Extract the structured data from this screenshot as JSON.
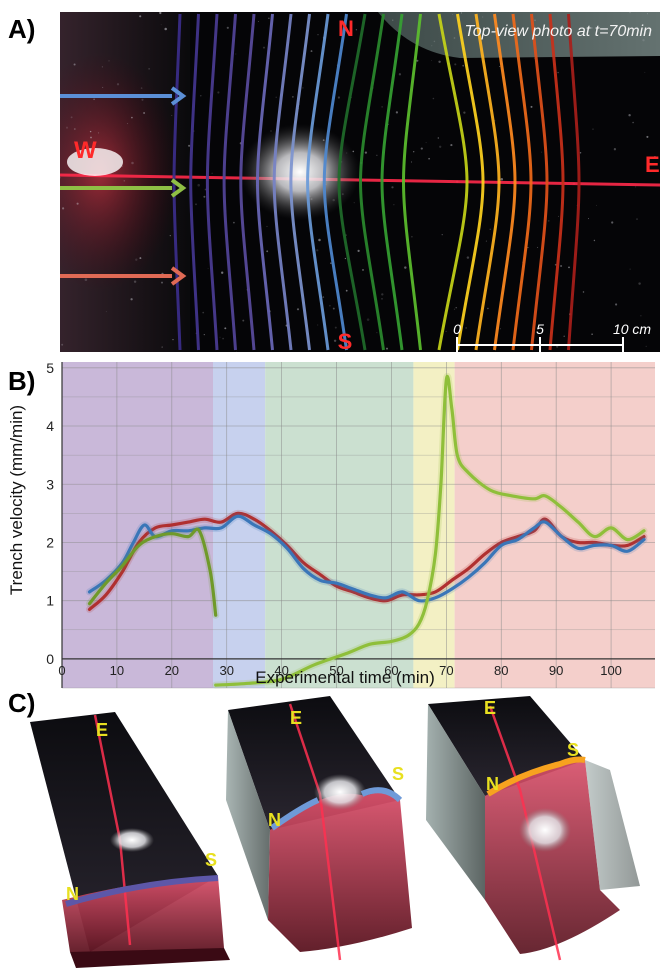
{
  "panel_a": {
    "letter": "A)",
    "caption": "Top-view photo at t=70min",
    "compass": {
      "n": "N",
      "s": "S",
      "w": "W",
      "e": "E"
    },
    "scale_bar": {
      "ticks": [
        "0",
        "5",
        "10 cm"
      ]
    },
    "colors": {
      "laser": "#ff2a4a",
      "arrow_top": "#5b8fd6",
      "arrow_mid": "#8fbf45",
      "arrow_bottom": "#e06a55",
      "photo_bg": "#050507"
    },
    "contours": [
      {
        "color": "#3b2e8a"
      },
      {
        "color": "#43358f"
      },
      {
        "color": "#4b3c94"
      },
      {
        "color": "#524499"
      },
      {
        "color": "#5a4c9e"
      },
      {
        "color": "#6a68b8"
      },
      {
        "color": "#7682c6"
      },
      {
        "color": "#7d94cf"
      },
      {
        "color": "#6a9ad8"
      },
      {
        "color": "#4e88cf"
      },
      {
        "color": "#1f6b2a"
      },
      {
        "color": "#2a8a2e"
      },
      {
        "color": "#35a132"
      },
      {
        "color": "#5cbf2e"
      },
      {
        "color": "#c6d418"
      },
      {
        "color": "#ffd21f"
      },
      {
        "color": "#ffb31f"
      },
      {
        "color": "#ff8a1f"
      },
      {
        "color": "#f06a1a"
      },
      {
        "color": "#e0501a"
      },
      {
        "color": "#c9301a"
      },
      {
        "color": "#a81e1a"
      }
    ]
  },
  "panel_b": {
    "letter": "B)",
    "chart_data": {
      "type": "line",
      "xlabel": "Experimental time (min)",
      "ylabel": "Trench velocity (mm/min)",
      "xlim": [
        0,
        108
      ],
      "ylim": [
        -0.5,
        5.1
      ],
      "xticks": [
        0,
        10,
        20,
        30,
        40,
        50,
        60,
        70,
        80,
        90,
        100
      ],
      "yticks": [
        0,
        1,
        2,
        3,
        4,
        5
      ],
      "grid": true,
      "background_bands": [
        {
          "from": 0,
          "to": 27.5,
          "color": "#c9b8d9"
        },
        {
          "from": 27.5,
          "to": 37,
          "color": "#c7d1ee"
        },
        {
          "from": 37,
          "to": 64,
          "color": "#cbe0d0"
        },
        {
          "from": 64,
          "to": 71.5,
          "color": "#f3f0c4"
        },
        {
          "from": 71.5,
          "to": 108,
          "color": "#f4cfcb"
        }
      ],
      "series": [
        {
          "color": "#b03030",
          "x": [
            5,
            8,
            11,
            14,
            17,
            20,
            23,
            26,
            29,
            32,
            35,
            38,
            41,
            44,
            47,
            50,
            53,
            56,
            59,
            62,
            65,
            68,
            71,
            74,
            77,
            80,
            83,
            86,
            88,
            91,
            94,
            97,
            100,
            103,
            106
          ],
          "y": [
            0.85,
            1.1,
            1.5,
            2.0,
            2.25,
            2.3,
            2.35,
            2.4,
            2.35,
            2.5,
            2.4,
            2.2,
            1.95,
            1.65,
            1.45,
            1.25,
            1.15,
            1.05,
            1.0,
            1.1,
            1.1,
            1.15,
            1.35,
            1.55,
            1.8,
            2.0,
            2.1,
            2.2,
            2.4,
            2.1,
            2.0,
            2.0,
            1.95,
            1.95,
            2.1
          ]
        },
        {
          "color": "#3a76b8",
          "x": [
            5,
            8,
            11,
            13,
            15,
            17,
            20,
            23,
            26,
            29,
            32,
            35,
            38,
            41,
            44,
            47,
            50,
            53,
            56,
            59,
            62,
            65,
            68,
            71,
            74,
            77,
            80,
            83,
            86,
            88,
            91,
            94,
            97,
            100,
            103,
            106
          ],
          "y": [
            1.15,
            1.35,
            1.65,
            2.0,
            2.3,
            2.1,
            2.2,
            2.2,
            2.25,
            2.25,
            2.45,
            2.3,
            2.15,
            1.9,
            1.55,
            1.35,
            1.3,
            1.2,
            1.1,
            1.05,
            1.15,
            1.0,
            1.05,
            1.2,
            1.4,
            1.65,
            1.95,
            2.05,
            2.25,
            2.35,
            2.1,
            1.9,
            1.95,
            1.95,
            1.85,
            2.05
          ]
        },
        {
          "color": "#6f9a2a",
          "x": [
            5,
            8,
            11,
            14,
            17,
            20,
            23,
            25,
            27,
            28
          ],
          "y": [
            0.95,
            1.3,
            1.6,
            1.95,
            2.1,
            2.15,
            2.1,
            2.2,
            1.5,
            0.75
          ]
        },
        {
          "color": "#8fbf3a",
          "x": [
            28,
            34,
            40,
            46,
            52,
            56,
            60,
            63,
            65,
            66.5,
            68,
            69,
            70,
            71,
            72,
            74,
            78,
            82,
            86,
            88,
            91,
            94,
            97,
            100,
            103,
            106
          ],
          "y": [
            -0.45,
            -0.42,
            -0.35,
            -0.1,
            0.1,
            0.25,
            0.3,
            0.4,
            0.6,
            1.0,
            1.8,
            3.0,
            4.8,
            4.3,
            3.5,
            3.2,
            2.9,
            2.8,
            2.75,
            2.8,
            2.6,
            2.35,
            2.1,
            2.25,
            2.05,
            2.2
          ]
        }
      ]
    }
  },
  "panel_c": {
    "letter": "C)",
    "blocks": [
      {
        "top": "E",
        "left": "N",
        "right": "S",
        "front_color": "#5d57a8"
      },
      {
        "top": "E",
        "left": "N",
        "right": "S",
        "front_color": "#6f9ad8"
      },
      {
        "top": "E",
        "left": "N",
        "right": "S",
        "front_color": "#f7a21f"
      }
    ],
    "label_color": "#e8e020"
  }
}
